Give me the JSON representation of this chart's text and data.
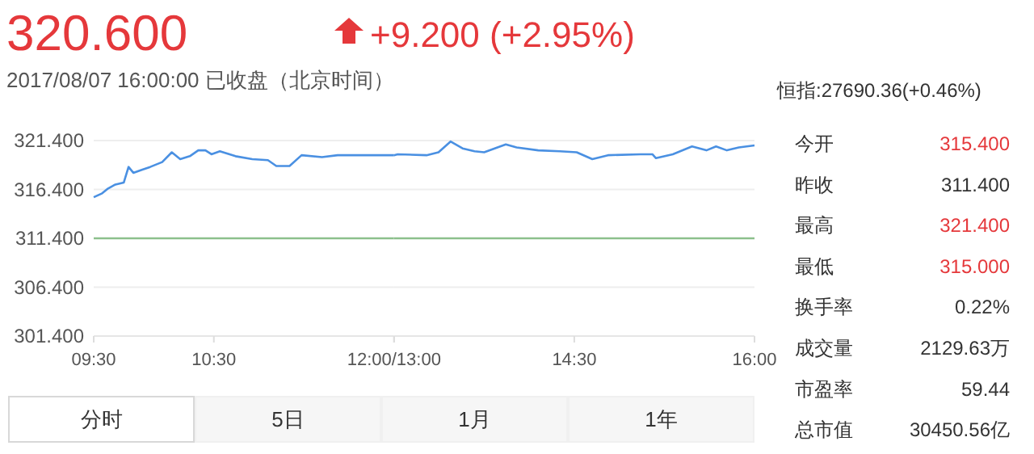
{
  "chart_data": [
    {
      "type": "line",
      "title": "320.600",
      "annotations": [
        "+9.200 (+2.95%)",
        "2017/08/07 16:00:00 已收盘（北京时间）",
        "恒指:27690.36(+0.46%)",
        "今开",
        "315.400",
        "昨收",
        "311.400",
        "最高",
        "321.400",
        "最低",
        "315.000",
        "换手率",
        "0.22%",
        "成交量",
        "2129.63万",
        "市盈率",
        "59.44",
        "总市值",
        "30450.56亿",
        "分时",
        "5日",
        "1月",
        "1年"
      ],
      "x": [
        9.5,
        9.57,
        9.62,
        9.68,
        9.75,
        9.79,
        9.83,
        9.9,
        9.97,
        10.07,
        10.15,
        10.22,
        10.3,
        10.37,
        10.43,
        10.48,
        10.55,
        10.68,
        10.82,
        10.95,
        11.02,
        11.13,
        11.23,
        11.4,
        11.53,
        11.85,
        12
      ],
      "series": [
        {
          "color": "#4a90e2",
          "values": [
            315.6,
            316.0,
            316.5,
            316.9,
            317.1,
            318.7,
            318.1,
            318.4,
            318.7,
            319.2,
            320.2,
            319.5,
            319.8,
            320.4,
            320.4,
            320.0,
            320.3,
            319.8,
            319.5,
            319.4,
            318.8,
            318.8,
            319.9,
            319.7,
            319.9,
            319.9,
            319.9
          ]
        }
      ],
      "xlim": [
        9.5,
        12
      ],
      "xticks": [
        {
          "value": 9.5,
          "label": "09:30"
        },
        {
          "value": 10.5,
          "label": "10:30"
        },
        {
          "value": 12,
          "label": "12:00/13:00"
        }
      ],
      "ylim": [
        301.4,
        321.4
      ],
      "yticks": [
        {
          "value": 301.4,
          "label": "301.400"
        },
        {
          "value": 306.4,
          "label": "306.400"
        },
        {
          "value": 311.4,
          "label": "311.400"
        },
        {
          "value": 316.4,
          "label": "316.400"
        },
        {
          "value": 321.4,
          "label": "321.400"
        }
      ],
      "ref_lines": [
        {
          "axis": "y",
          "value": 311.4,
          "color": "#8cc08c"
        }
      ],
      "grid": "y",
      "marker": "none",
      "line_style": "solid"
    },
    {
      "type": "line",
      "x": [
        13,
        13.03,
        13.27,
        13.37,
        13.47,
        13.57,
        13.67,
        13.75,
        13.93,
        14.02,
        14.2,
        14.38,
        14.52,
        14.65,
        14.78,
        15.05,
        15.15,
        15.18,
        15.32,
        15.48,
        15.6,
        15.68,
        15.77,
        15.87,
        16
      ],
      "series": [
        {
          "color": "#4a90e2",
          "values": [
            319.9,
            320.0,
            319.9,
            320.2,
            321.3,
            320.6,
            320.3,
            320.2,
            321.0,
            320.7,
            320.4,
            320.3,
            320.2,
            319.5,
            319.9,
            320.0,
            320.0,
            319.6,
            320.0,
            320.8,
            320.4,
            320.8,
            320.4,
            320.7,
            320.9
          ]
        }
      ],
      "xlim": [
        13,
        16
      ],
      "xticks": [
        {
          "value": 13,
          "label": null
        },
        {
          "value": 14.5,
          "label": "14:30"
        },
        {
          "value": 16,
          "label": "16:00"
        }
      ],
      "ylim": [
        301.4,
        321.4
      ],
      "yticks": [
        {
          "value": 301.4,
          "label": null
        },
        {
          "value": 306.4,
          "label": null
        },
        {
          "value": 311.4,
          "label": null
        },
        {
          "value": 316.4,
          "label": null
        },
        {
          "value": 321.4,
          "label": null
        }
      ],
      "ref_lines": [
        {
          "axis": "y",
          "value": 311.4,
          "color": "#8cc08c"
        }
      ],
      "grid": "y",
      "tick_labels": "x",
      "marker": "none",
      "line_style": "solid"
    }
  ]
}
